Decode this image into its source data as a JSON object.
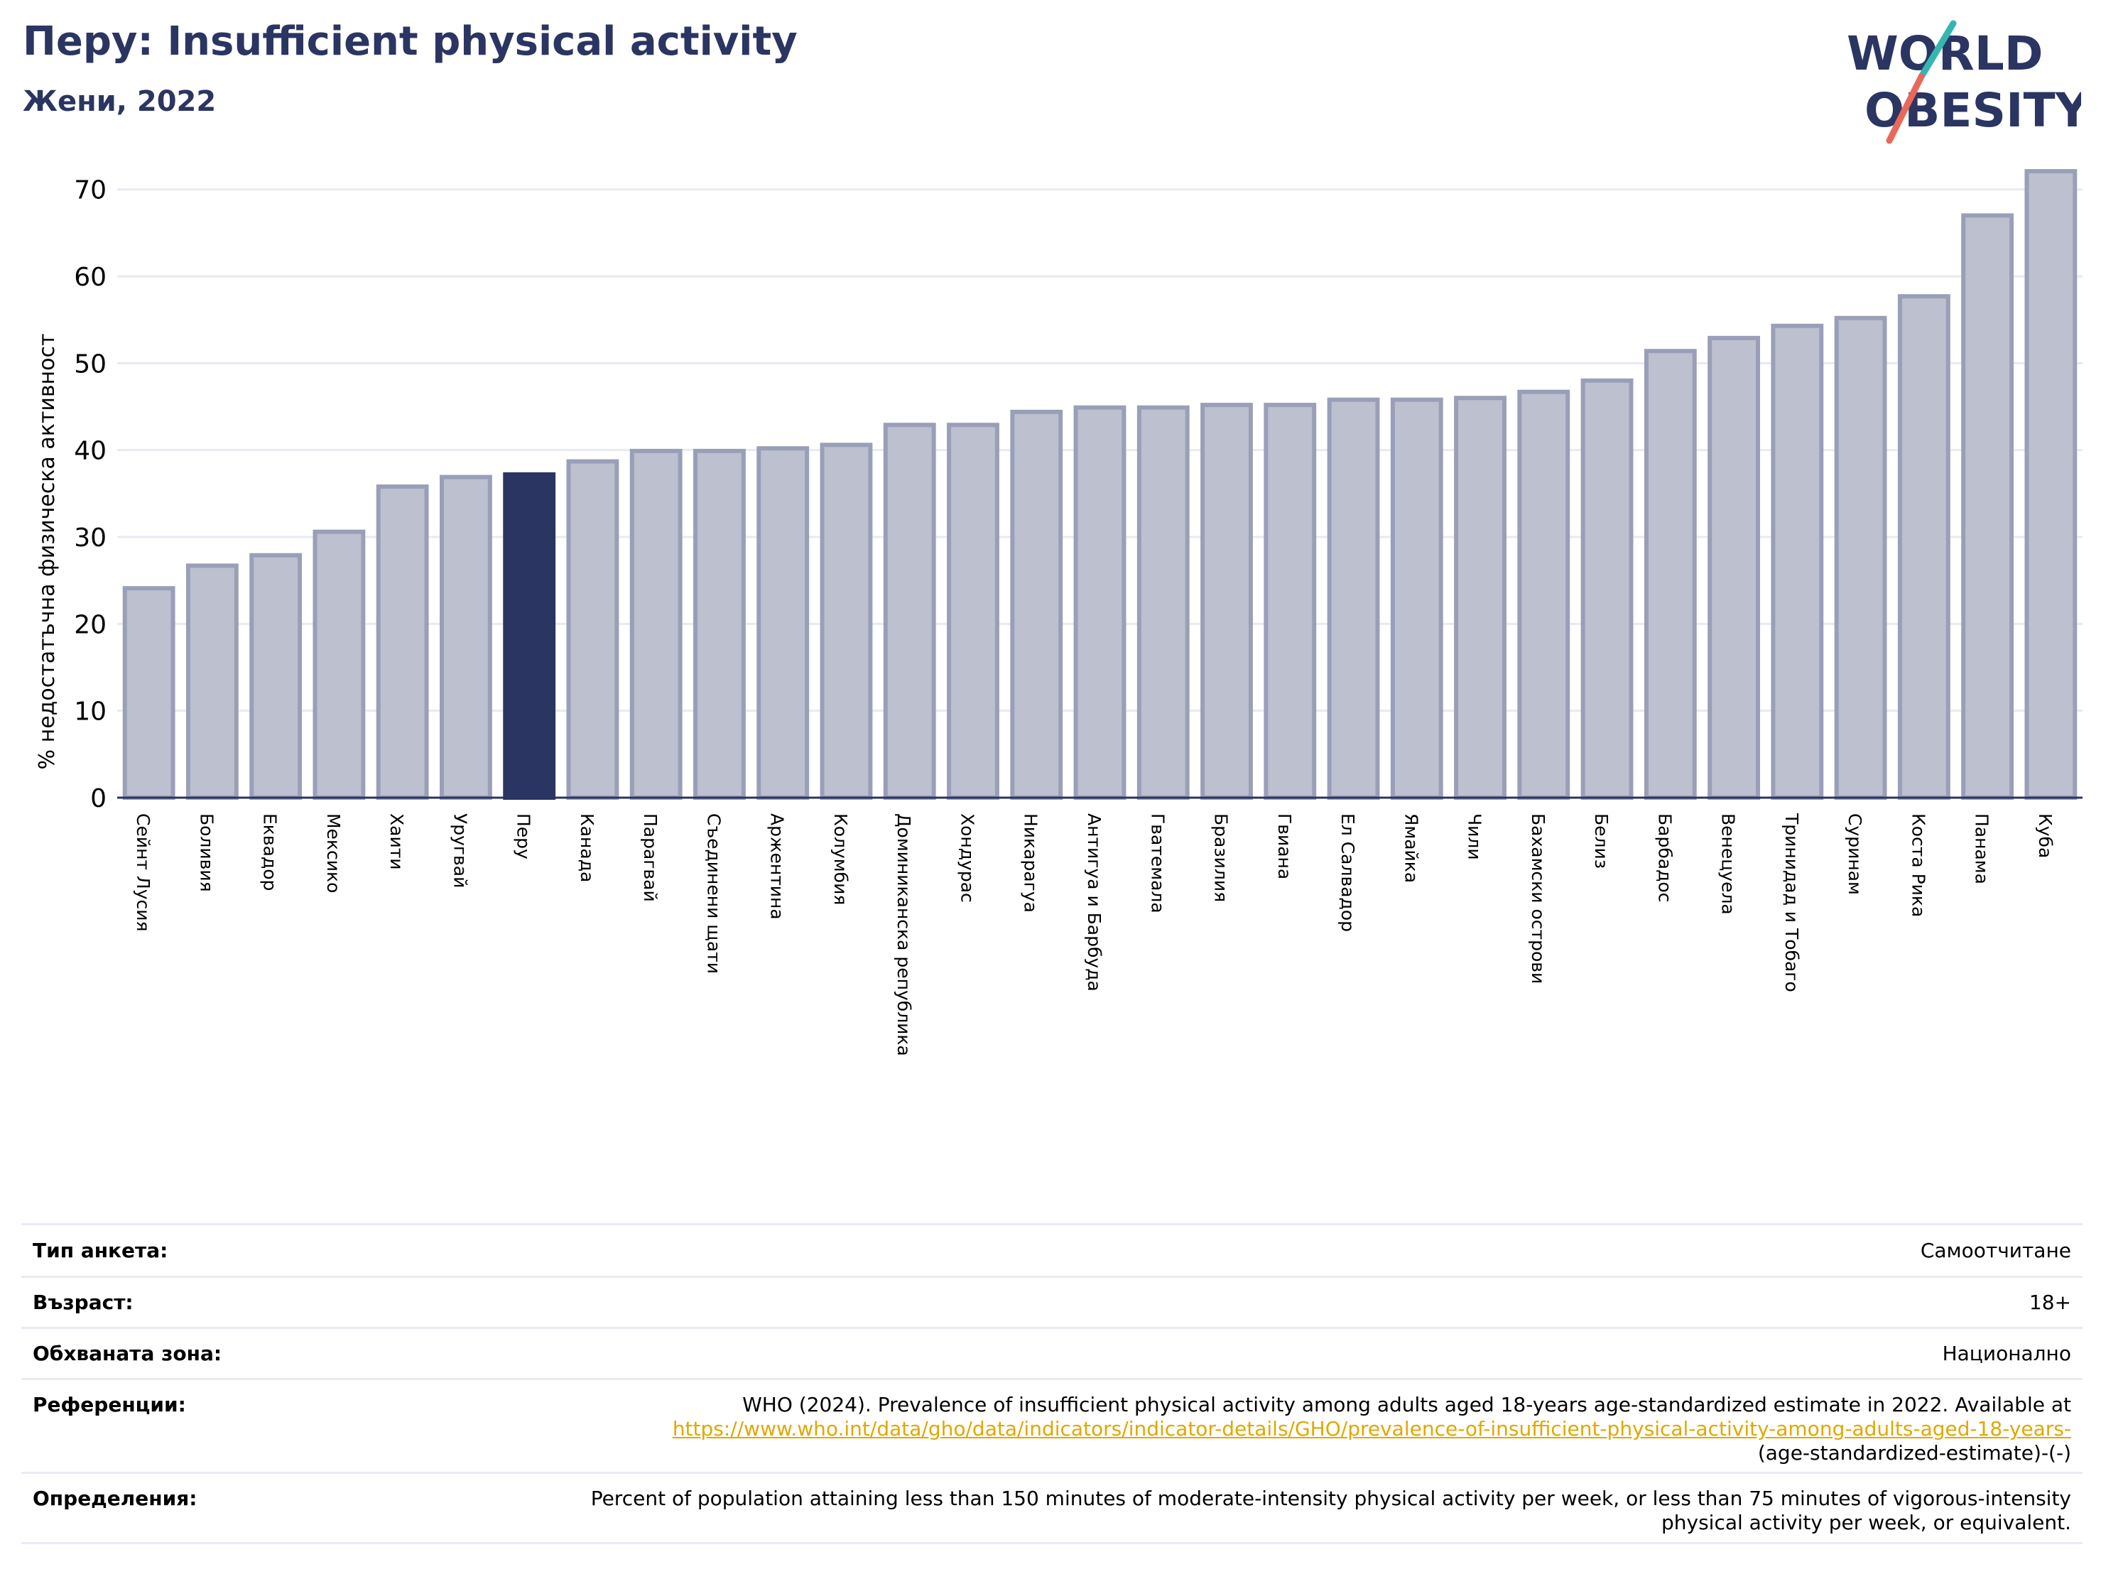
{
  "title": "Перу: Insufficient physical activity",
  "subtitle": "Жени, 2022",
  "logo": {
    "line1": "WORLD",
    "line2": "OBESITY",
    "colors": {
      "text": "#2b3562",
      "slash_teal": "#35b7b1",
      "slash_red": "#e8685a"
    }
  },
  "colors": {
    "bar": "#bcc0cf",
    "bar_edge": "#9a9fb8",
    "highlight": "#2b3562",
    "grid": "#e8eaf2",
    "axis": "#2b3562"
  },
  "chart_data": {
    "type": "bar",
    "ylabel": "% недостатъчна физическа активност",
    "ylim": [
      0,
      73
    ],
    "yticks": [
      0,
      10,
      20,
      30,
      40,
      50,
      60,
      70
    ],
    "grid": "horizontal",
    "highlight": "Перу",
    "categories": [
      "Сейнт Лусия",
      "Боливия",
      "Еквадор",
      "Мексико",
      "Хаити",
      "Уругвай",
      "Перу",
      "Канада",
      "Парагвай",
      "Съединени щати",
      "Аржентина",
      "Колумбия",
      "Доминиканска република",
      "Хондурас",
      "Никарагуа",
      "Антигуа и Барбуда",
      "Гватемала",
      "Бразилия",
      "Гвиана",
      "Ел Салвадор",
      "Ямайка",
      "Чили",
      "Бахамски острови",
      "Белиз",
      "Барбадос",
      "Венецуела",
      "Тринидад и Тобаго",
      "Суринам",
      "Коста Рика",
      "Панама",
      "Куба"
    ],
    "values": [
      24.1,
      26.7,
      27.9,
      30.6,
      35.8,
      36.9,
      37.2,
      38.7,
      39.9,
      39.9,
      40.2,
      40.6,
      42.9,
      42.9,
      44.4,
      44.9,
      44.9,
      45.2,
      45.2,
      45.8,
      45.8,
      46.0,
      46.7,
      48.0,
      51.4,
      52.9,
      54.3,
      55.2,
      57.7,
      67.0,
      72.1
    ]
  },
  "info": [
    {
      "label": "Тип анкета:",
      "value": "Самоотчитане"
    },
    {
      "label": "Възраст:",
      "value": "18+"
    },
    {
      "label": "Обхваната зона:",
      "value": "Национално"
    },
    {
      "label": "Референции:",
      "value": "WHO (2024). Prevalence of insufficient physical activity among adults aged 18-years age-standardized estimate in 2022. Available at",
      "link": "https://www.who.int/data/gho/data/indicators/indicator-details/GHO/prevalence-of-insufficient-physical-activity-among-adults-aged-18-years-",
      "value_after": "(age-standardized-estimate)-(-)"
    },
    {
      "label": "Определения:",
      "value": "Percent of population attaining less than 150 minutes of moderate-intensity physical activity per week, or less than 75 minutes of vigorous-intensity physical activity per week, or equivalent."
    }
  ]
}
